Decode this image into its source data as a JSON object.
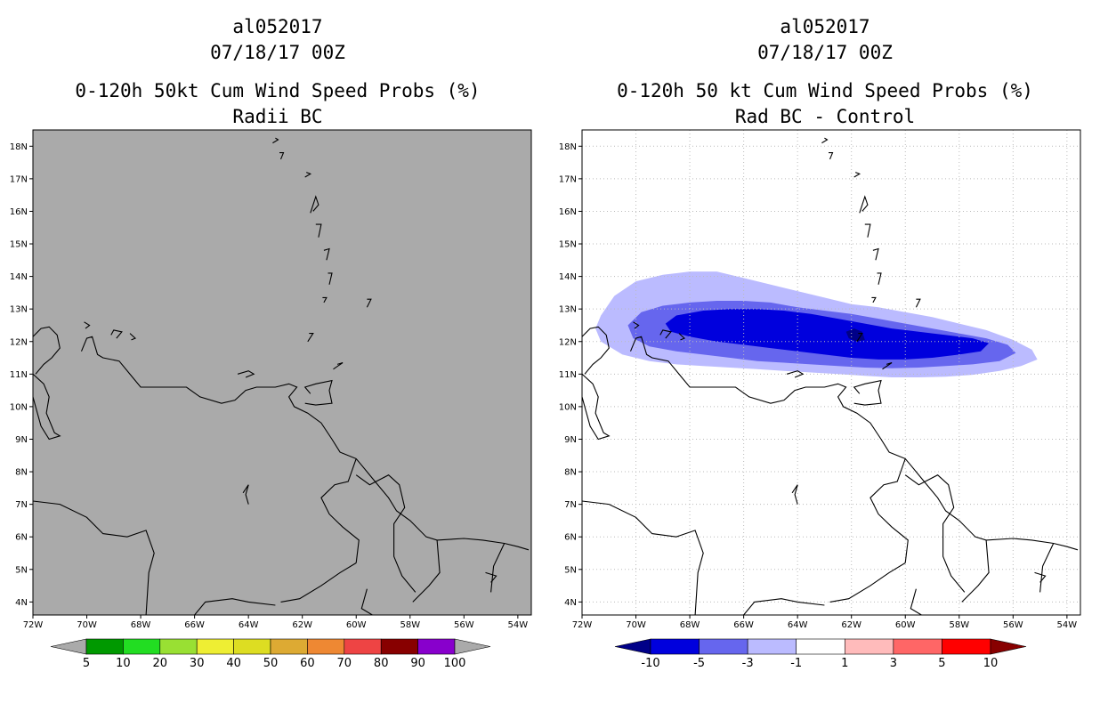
{
  "colors": {
    "land_fill": "#aaaaaa",
    "coast": "#000000",
    "grid": "#bbbbbb"
  },
  "panels": [
    {
      "id": "left",
      "storm_id": "al052017",
      "datetime": "07/18/17 00Z",
      "title": "0-120h 50kt Cum Wind Speed Probs (%)",
      "subtitle": "Radii BC",
      "background": "#aaaaaa",
      "gridlines": false,
      "colorbar": {
        "colors": [
          "#009900",
          "#22dd22",
          "#99e033",
          "#eeee33",
          "#dddd22",
          "#ddaa33",
          "#ee8833",
          "#ee4444",
          "#880000",
          "#8800cc"
        ],
        "labels": [
          "5",
          "10",
          "20",
          "30",
          "40",
          "50",
          "60",
          "70",
          "80",
          "90",
          "100"
        ],
        "end_color": "#aaaaaa"
      }
    },
    {
      "id": "right",
      "storm_id": "al052017",
      "datetime": "07/18/17 00Z",
      "title": "0-120h 50 kt Cum Wind Speed Probs (%)",
      "subtitle": "Rad BC - Control",
      "background": "#ffffff",
      "gridlines": true,
      "colorbar": {
        "colors": [
          "#0000dd",
          "#6666ee",
          "#bbbbff",
          "#ffffff",
          "#ffbbbb",
          "#ff6666",
          "#ff0000"
        ],
        "labels": [
          "-10",
          "-5",
          "-3",
          "-1",
          "1",
          "3",
          "5",
          "10"
        ],
        "left_color": "#000088",
        "right_color": "#880000"
      }
    }
  ],
  "axes": {
    "lon_labels": [
      "72W",
      "70W",
      "68W",
      "66W",
      "64W",
      "62W",
      "60W",
      "58W",
      "56W",
      "54W"
    ],
    "lat_labels": [
      "18N",
      "17N",
      "16N",
      "15N",
      "14N",
      "13N",
      "12N",
      "11N",
      "10N",
      "9N",
      "8N",
      "7N",
      "6N",
      "5N",
      "4N"
    ],
    "lon_range": [
      -72,
      -53.5
    ],
    "lat_range": [
      3.6,
      18.5
    ]
  },
  "probability_difference_field": {
    "units": "%",
    "contours": [
      {
        "level": "<= -1",
        "color": "#bbbbff",
        "lonlat": [
          [
            -71.3,
            12.8
          ],
          [
            -70.8,
            13.4
          ],
          [
            -70.0,
            13.85
          ],
          [
            -69.0,
            14.05
          ],
          [
            -68.0,
            14.15
          ],
          [
            -67.0,
            14.15
          ],
          [
            -66.0,
            13.95
          ],
          [
            -65.0,
            13.75
          ],
          [
            -64.0,
            13.55
          ],
          [
            -63.0,
            13.35
          ],
          [
            -62.0,
            13.15
          ],
          [
            -61.0,
            13.05
          ],
          [
            -60.0,
            12.9
          ],
          [
            -59.0,
            12.75
          ],
          [
            -58.0,
            12.55
          ],
          [
            -57.0,
            12.35
          ],
          [
            -56.0,
            12.05
          ],
          [
            -55.3,
            11.75
          ],
          [
            -55.1,
            11.45
          ],
          [
            -55.7,
            11.25
          ],
          [
            -56.5,
            11.1
          ],
          [
            -57.5,
            10.98
          ],
          [
            -58.5,
            10.92
          ],
          [
            -59.5,
            10.9
          ],
          [
            -60.5,
            10.9
          ],
          [
            -61.5,
            10.95
          ],
          [
            -62.5,
            11.0
          ],
          [
            -63.5,
            11.05
          ],
          [
            -64.5,
            11.1
          ],
          [
            -65.5,
            11.15
          ],
          [
            -66.5,
            11.2
          ],
          [
            -67.5,
            11.25
          ],
          [
            -68.5,
            11.3
          ],
          [
            -69.5,
            11.4
          ],
          [
            -70.5,
            11.6
          ],
          [
            -71.3,
            12.0
          ],
          [
            -71.5,
            12.4
          ]
        ]
      },
      {
        "level": "<= -3",
        "color": "#6666ee",
        "lonlat": [
          [
            -70.3,
            12.5
          ],
          [
            -69.8,
            12.9
          ],
          [
            -69.0,
            13.1
          ],
          [
            -68.0,
            13.2
          ],
          [
            -67.0,
            13.25
          ],
          [
            -66.0,
            13.25
          ],
          [
            -65.0,
            13.2
          ],
          [
            -64.0,
            13.05
          ],
          [
            -63.0,
            12.95
          ],
          [
            -62.0,
            12.85
          ],
          [
            -61.0,
            12.7
          ],
          [
            -60.0,
            12.55
          ],
          [
            -59.0,
            12.4
          ],
          [
            -58.0,
            12.25
          ],
          [
            -57.0,
            12.1
          ],
          [
            -56.2,
            11.9
          ],
          [
            -55.9,
            11.65
          ],
          [
            -56.5,
            11.4
          ],
          [
            -57.5,
            11.3
          ],
          [
            -58.5,
            11.25
          ],
          [
            -59.5,
            11.2
          ],
          [
            -60.5,
            11.18
          ],
          [
            -61.5,
            11.2
          ],
          [
            -62.5,
            11.25
          ],
          [
            -63.5,
            11.3
          ],
          [
            -64.5,
            11.35
          ],
          [
            -65.5,
            11.4
          ],
          [
            -66.5,
            11.5
          ],
          [
            -67.5,
            11.6
          ],
          [
            -68.5,
            11.7
          ],
          [
            -69.5,
            11.85
          ],
          [
            -70.1,
            12.1
          ]
        ]
      },
      {
        "level": "<= -5",
        "color": "#0000dd",
        "lonlat": [
          [
            -68.9,
            12.55
          ],
          [
            -68.5,
            12.8
          ],
          [
            -67.5,
            12.95
          ],
          [
            -66.5,
            13.0
          ],
          [
            -65.5,
            13.0
          ],
          [
            -64.5,
            12.95
          ],
          [
            -63.5,
            12.85
          ],
          [
            -62.5,
            12.7
          ],
          [
            -61.5,
            12.55
          ],
          [
            -60.5,
            12.4
          ],
          [
            -59.5,
            12.3
          ],
          [
            -58.5,
            12.2
          ],
          [
            -57.5,
            12.1
          ],
          [
            -56.9,
            11.95
          ],
          [
            -57.2,
            11.7
          ],
          [
            -58.0,
            11.6
          ],
          [
            -59.0,
            11.5
          ],
          [
            -60.0,
            11.45
          ],
          [
            -61.0,
            11.45
          ],
          [
            -62.0,
            11.5
          ],
          [
            -63.0,
            11.6
          ],
          [
            -64.0,
            11.7
          ],
          [
            -65.0,
            11.8
          ],
          [
            -66.0,
            11.9
          ],
          [
            -67.0,
            12.0
          ],
          [
            -68.0,
            12.15
          ],
          [
            -68.7,
            12.3
          ]
        ]
      },
      {
        "level": "<= -10",
        "color": "#000088",
        "lonlat": [
          [
            -62.2,
            12.3
          ],
          [
            -61.9,
            12.4
          ],
          [
            -61.6,
            12.3
          ],
          [
            -61.5,
            12.05
          ],
          [
            -61.8,
            12.0
          ],
          [
            -62.1,
            12.1
          ]
        ]
      }
    ]
  },
  "coastlines_lonlat": [
    [
      [
        -72.0,
        11.0
      ],
      [
        -71.6,
        10.7
      ],
      [
        -71.4,
        10.3
      ],
      [
        -71.5,
        9.8
      ],
      [
        -71.2,
        9.2
      ],
      [
        -71.0,
        9.1
      ],
      [
        -71.4,
        9.0
      ],
      [
        -71.7,
        9.4
      ],
      [
        -71.9,
        10.0
      ],
      [
        -72.0,
        10.3
      ]
    ],
    [
      [
        -72.0,
        12.15
      ],
      [
        -71.7,
        12.4
      ],
      [
        -71.4,
        12.45
      ],
      [
        -71.1,
        12.2
      ],
      [
        -71.0,
        11.8
      ],
      [
        -71.3,
        11.5
      ],
      [
        -71.6,
        11.3
      ],
      [
        -71.9,
        11.0
      ]
    ],
    [
      [
        -70.2,
        11.7
      ],
      [
        -70.0,
        12.1
      ],
      [
        -69.8,
        12.15
      ],
      [
        -69.6,
        11.6
      ],
      [
        -69.4,
        11.5
      ],
      [
        -68.8,
        11.4
      ],
      [
        -68.3,
        10.9
      ],
      [
        -68.0,
        10.6
      ],
      [
        -67.0,
        10.6
      ],
      [
        -66.3,
        10.6
      ],
      [
        -65.8,
        10.3
      ],
      [
        -65.0,
        10.1
      ],
      [
        -64.5,
        10.2
      ],
      [
        -64.1,
        10.5
      ],
      [
        -63.7,
        10.6
      ],
      [
        -63.0,
        10.6
      ],
      [
        -62.5,
        10.7
      ],
      [
        -62.2,
        10.6
      ],
      [
        -62.5,
        10.3
      ],
      [
        -62.3,
        10.0
      ],
      [
        -61.8,
        9.8
      ],
      [
        -61.3,
        9.5
      ],
      [
        -60.9,
        9.0
      ],
      [
        -60.6,
        8.6
      ],
      [
        -60.0,
        8.4
      ],
      [
        -59.8,
        8.2
      ],
      [
        -59.4,
        7.8
      ],
      [
        -58.8,
        7.2
      ],
      [
        -58.5,
        6.8
      ],
      [
        -58.0,
        6.5
      ],
      [
        -57.4,
        6.0
      ],
      [
        -57.0,
        5.9
      ],
      [
        -56.0,
        5.95
      ],
      [
        -55.3,
        5.9
      ],
      [
        -54.5,
        5.8
      ],
      [
        -54.0,
        5.7
      ],
      [
        -53.6,
        5.6
      ]
    ],
    [
      [
        -61.9,
        10.1
      ],
      [
        -61.5,
        10.05
      ],
      [
        -60.9,
        10.1
      ],
      [
        -61.0,
        10.5
      ],
      [
        -60.9,
        10.8
      ],
      [
        -61.5,
        10.7
      ],
      [
        -61.9,
        10.6
      ],
      [
        -61.7,
        10.4
      ]
    ],
    [
      [
        -60.85,
        11.15
      ],
      [
        -60.5,
        11.35
      ],
      [
        -60.7,
        11.3
      ]
    ],
    [
      [
        -68.9,
        12.1
      ],
      [
        -68.7,
        12.3
      ],
      [
        -69.0,
        12.35
      ],
      [
        -69.1,
        12.2
      ]
    ],
    [
      [
        -68.4,
        12.25
      ],
      [
        -68.2,
        12.1
      ],
      [
        -68.35,
        12.05
      ]
    ],
    [
      [
        -70.1,
        12.6
      ],
      [
        -69.9,
        12.5
      ],
      [
        -70.05,
        12.4
      ]
    ],
    [
      [
        -64.4,
        11.0
      ],
      [
        -64.0,
        11.1
      ],
      [
        -63.8,
        11.0
      ],
      [
        -64.1,
        10.9
      ]
    ],
    [
      [
        -61.8,
        12.0
      ],
      [
        -61.6,
        12.25
      ],
      [
        -61.75,
        12.25
      ]
    ],
    [
      [
        -61.2,
        13.2
      ],
      [
        -61.1,
        13.35
      ],
      [
        -61.25,
        13.35
      ]
    ],
    [
      [
        -61.0,
        13.75
      ],
      [
        -60.9,
        14.1
      ],
      [
        -61.05,
        14.1
      ]
    ],
    [
      [
        -61.1,
        14.5
      ],
      [
        -61.0,
        14.85
      ],
      [
        -61.2,
        14.8
      ]
    ],
    [
      [
        -61.4,
        15.2
      ],
      [
        -61.3,
        15.6
      ],
      [
        -61.5,
        15.6
      ]
    ],
    [
      [
        -61.7,
        15.95
      ],
      [
        -61.5,
        16.45
      ],
      [
        -61.4,
        16.2
      ],
      [
        -61.6,
        16.0
      ]
    ],
    [
      [
        -61.9,
        17.05
      ],
      [
        -61.7,
        17.15
      ],
      [
        -61.85,
        17.2
      ]
    ],
    [
      [
        -59.6,
        13.05
      ],
      [
        -59.45,
        13.3
      ],
      [
        -59.6,
        13.3
      ]
    ],
    [
      [
        -63.1,
        18.1
      ],
      [
        -62.9,
        18.2
      ],
      [
        -63.0,
        18.25
      ]
    ],
    [
      [
        -62.8,
        17.6
      ],
      [
        -62.7,
        17.8
      ],
      [
        -62.85,
        17.8
      ]
    ],
    [
      [
        -60.0,
        7.9
      ],
      [
        -59.5,
        7.6
      ],
      [
        -58.8,
        7.9
      ],
      [
        -58.4,
        7.6
      ],
      [
        -58.2,
        6.9
      ],
      [
        -58.6,
        6.4
      ],
      [
        -58.6,
        5.4
      ],
      [
        -58.3,
        4.8
      ],
      [
        -57.8,
        4.3
      ]
    ],
    [
      [
        -57.0,
        5.9
      ],
      [
        -56.9,
        4.9
      ],
      [
        -57.3,
        4.5
      ],
      [
        -57.9,
        4.0
      ]
    ],
    [
      [
        -54.5,
        5.8
      ],
      [
        -54.9,
        5.1
      ],
      [
        -55.0,
        4.3
      ]
    ],
    [
      [
        -64.0,
        7.0
      ],
      [
        -64.1,
        7.3
      ],
      [
        -64.0,
        7.6
      ],
      [
        -64.2,
        7.35
      ]
    ],
    [
      [
        -72.0,
        7.1
      ],
      [
        -71.0,
        7.0
      ],
      [
        -70.0,
        6.6
      ],
      [
        -69.4,
        6.1
      ],
      [
        -68.5,
        6.0
      ],
      [
        -67.8,
        6.2
      ],
      [
        -67.5,
        5.5
      ],
      [
        -67.7,
        4.9
      ],
      [
        -67.8,
        3.6
      ]
    ],
    [
      [
        -66.0,
        3.6
      ],
      [
        -65.6,
        4.0
      ],
      [
        -64.6,
        4.1
      ],
      [
        -64.0,
        4.0
      ],
      [
        -63.0,
        3.9
      ]
    ],
    [
      [
        -60.0,
        5.2
      ],
      [
        -60.6,
        4.9
      ],
      [
        -61.3,
        4.5
      ],
      [
        -62.1,
        4.1
      ],
      [
        -62.8,
        4.0
      ]
    ],
    [
      [
        -60.0,
        5.2
      ],
      [
        -59.9,
        5.9
      ],
      [
        -60.5,
        6.3
      ],
      [
        -61.0,
        6.7
      ],
      [
        -61.3,
        7.2
      ],
      [
        -60.8,
        7.6
      ],
      [
        -60.3,
        7.7
      ],
      [
        -60.0,
        8.4
      ]
    ],
    [
      [
        -59.6,
        4.4
      ],
      [
        -59.8,
        3.8
      ],
      [
        -59.4,
        3.6
      ]
    ],
    [
      [
        -55.0,
        4.6
      ],
      [
        -54.8,
        4.8
      ],
      [
        -55.2,
        4.9
      ]
    ]
  ]
}
